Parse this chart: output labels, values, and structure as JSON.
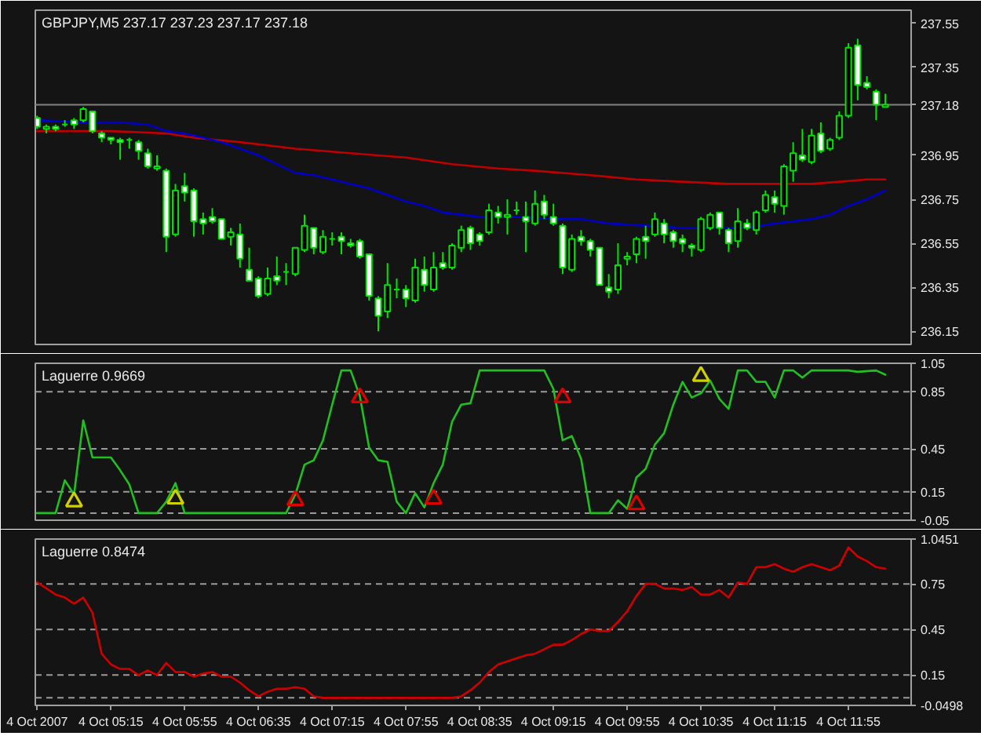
{
  "chart_data": [
    {
      "type": "candlestick",
      "title": "GBPJPY,M5 237.17 237.23 237.17 237.18",
      "x": [
        "2007-10-04T04:35",
        "2007-10-04T04:40",
        "2007-10-04T04:45",
        "2007-10-04T04:50",
        "2007-10-04T04:55",
        "2007-10-04T05:00",
        "2007-10-04T05:05",
        "2007-10-04T05:10",
        "2007-10-04T05:15",
        "2007-10-04T05:20",
        "2007-10-04T05:25",
        "2007-10-04T05:30",
        "2007-10-04T05:35",
        "2007-10-04T05:40",
        "2007-10-04T05:45",
        "2007-10-04T05:50",
        "2007-10-04T05:55",
        "2007-10-04T06:00",
        "2007-10-04T06:05",
        "2007-10-04T06:10",
        "2007-10-04T06:15",
        "2007-10-04T06:20",
        "2007-10-04T06:25",
        "2007-10-04T06:30",
        "2007-10-04T06:35",
        "2007-10-04T06:40",
        "2007-10-04T06:45",
        "2007-10-04T06:50",
        "2007-10-04T06:55",
        "2007-10-04T07:00",
        "2007-10-04T07:05",
        "2007-10-04T07:10",
        "2007-10-04T07:15",
        "2007-10-04T07:20",
        "2007-10-04T07:25",
        "2007-10-04T07:30",
        "2007-10-04T07:35",
        "2007-10-04T07:40",
        "2007-10-04T07:45",
        "2007-10-04T07:50",
        "2007-10-04T07:55",
        "2007-10-04T08:00",
        "2007-10-04T08:05",
        "2007-10-04T08:10",
        "2007-10-04T08:15",
        "2007-10-04T08:20",
        "2007-10-04T08:25",
        "2007-10-04T08:30",
        "2007-10-04T08:35",
        "2007-10-04T08:40",
        "2007-10-04T08:45",
        "2007-10-04T08:50",
        "2007-10-04T08:55",
        "2007-10-04T09:00",
        "2007-10-04T09:05",
        "2007-10-04T09:10",
        "2007-10-04T09:15",
        "2007-10-04T09:20",
        "2007-10-04T09:25",
        "2007-10-04T09:30",
        "2007-10-04T09:35",
        "2007-10-04T09:40",
        "2007-10-04T09:45",
        "2007-10-04T09:50",
        "2007-10-04T09:55",
        "2007-10-04T10:00",
        "2007-10-04T10:05",
        "2007-10-04T10:10",
        "2007-10-04T10:15",
        "2007-10-04T10:20",
        "2007-10-04T10:25",
        "2007-10-04T10:30",
        "2007-10-04T10:35",
        "2007-10-04T10:40",
        "2007-10-04T10:45",
        "2007-10-04T10:50",
        "2007-10-04T10:55",
        "2007-10-04T11:00",
        "2007-10-04T11:05",
        "2007-10-04T11:10",
        "2007-10-04T11:15",
        "2007-10-04T11:20",
        "2007-10-04T11:25",
        "2007-10-04T11:30",
        "2007-10-04T11:35",
        "2007-10-04T11:40",
        "2007-10-04T11:45",
        "2007-10-04T11:50",
        "2007-10-04T11:55",
        "2007-10-04T12:00",
        "2007-10-04T12:05",
        "2007-10-04T12:10",
        "2007-10-04T12:15"
      ],
      "ohlc": [
        [
          237.12,
          237.13,
          237.07,
          237.08
        ],
        [
          237.07,
          237.09,
          237.05,
          237.08
        ],
        [
          237.08,
          237.09,
          237.06,
          237.07
        ],
        [
          237.09,
          237.11,
          237.08,
          237.09
        ],
        [
          237.11,
          237.12,
          237.07,
          237.09
        ],
        [
          237.11,
          237.17,
          237.1,
          237.16
        ],
        [
          237.15,
          237.15,
          237.05,
          237.06
        ],
        [
          237.05,
          237.06,
          237.01,
          237.03
        ],
        [
          237.03,
          237.03,
          237.0,
          237.02
        ],
        [
          237.02,
          237.03,
          236.93,
          237.01
        ],
        [
          237.02,
          237.03,
          236.98,
          237.02
        ],
        [
          237.01,
          237.02,
          236.93,
          236.97
        ],
        [
          236.96,
          236.98,
          236.89,
          236.9
        ],
        [
          236.89,
          236.95,
          236.88,
          236.9
        ],
        [
          236.88,
          236.89,
          236.51,
          236.58
        ],
        [
          236.59,
          236.82,
          236.58,
          236.79
        ],
        [
          236.81,
          236.87,
          236.74,
          236.78
        ],
        [
          236.79,
          236.8,
          236.58,
          236.65
        ],
        [
          236.66,
          236.69,
          236.59,
          236.64
        ],
        [
          236.67,
          236.71,
          236.64,
          236.65
        ],
        [
          236.66,
          236.66,
          236.57,
          236.57
        ],
        [
          236.58,
          236.62,
          236.54,
          236.6
        ],
        [
          236.59,
          236.64,
          236.44,
          236.48
        ],
        [
          236.43,
          236.53,
          236.38,
          236.38
        ],
        [
          236.39,
          236.4,
          236.3,
          236.31
        ],
        [
          236.32,
          236.44,
          236.31,
          236.39
        ],
        [
          236.4,
          236.49,
          236.36,
          236.38
        ],
        [
          236.42,
          236.46,
          236.36,
          236.42
        ],
        [
          236.41,
          236.53,
          236.4,
          236.53
        ],
        [
          236.52,
          236.68,
          236.51,
          236.63
        ],
        [
          236.62,
          236.62,
          236.5,
          236.53
        ],
        [
          236.51,
          236.61,
          236.5,
          236.58
        ],
        [
          236.57,
          236.6,
          236.54,
          236.57
        ],
        [
          236.58,
          236.6,
          236.5,
          236.56
        ],
        [
          236.55,
          236.57,
          236.53,
          236.54
        ],
        [
          236.56,
          236.57,
          236.48,
          236.49
        ],
        [
          236.5,
          236.5,
          236.29,
          236.31
        ],
        [
          236.3,
          236.31,
          236.15,
          236.22
        ],
        [
          236.24,
          236.46,
          236.21,
          236.36
        ],
        [
          236.34,
          236.39,
          236.3,
          236.34
        ],
        [
          236.34,
          236.36,
          236.26,
          236.3
        ],
        [
          236.29,
          236.48,
          236.28,
          236.44
        ],
        [
          236.43,
          236.49,
          236.33,
          236.36
        ],
        [
          236.34,
          236.51,
          236.33,
          236.44
        ],
        [
          236.46,
          236.51,
          236.43,
          236.44
        ],
        [
          236.44,
          236.55,
          236.43,
          236.54
        ],
        [
          236.53,
          236.63,
          236.51,
          236.61
        ],
        [
          236.62,
          236.63,
          236.52,
          236.55
        ],
        [
          236.59,
          236.6,
          236.54,
          236.56
        ],
        [
          236.6,
          236.73,
          236.59,
          236.7
        ],
        [
          236.69,
          236.72,
          236.64,
          236.67
        ],
        [
          236.67,
          236.75,
          236.59,
          236.68
        ],
        [
          236.7,
          236.74,
          236.68,
          236.7
        ],
        [
          236.67,
          236.74,
          236.51,
          236.65
        ],
        [
          236.64,
          236.79,
          236.63,
          236.73
        ],
        [
          236.74,
          236.77,
          236.66,
          236.68
        ],
        [
          236.67,
          236.73,
          236.63,
          236.64
        ],
        [
          236.63,
          236.64,
          236.41,
          236.44
        ],
        [
          236.43,
          236.59,
          236.42,
          236.57
        ],
        [
          236.58,
          236.61,
          236.54,
          236.56
        ],
        [
          236.56,
          236.57,
          236.49,
          236.52
        ],
        [
          236.53,
          236.53,
          236.36,
          236.36
        ],
        [
          236.35,
          236.41,
          236.3,
          236.33
        ],
        [
          236.34,
          236.55,
          236.32,
          236.45
        ],
        [
          236.48,
          236.51,
          236.45,
          236.49
        ],
        [
          236.5,
          236.58,
          236.46,
          236.57
        ],
        [
          236.58,
          236.63,
          236.48,
          236.56
        ],
        [
          236.59,
          236.69,
          236.58,
          236.66
        ],
        [
          236.64,
          236.66,
          236.55,
          236.59
        ],
        [
          236.6,
          236.61,
          236.53,
          236.56
        ],
        [
          236.57,
          236.59,
          236.51,
          236.55
        ],
        [
          236.54,
          236.55,
          236.49,
          236.53
        ],
        [
          236.52,
          236.67,
          236.51,
          236.66
        ],
        [
          236.62,
          236.69,
          236.61,
          236.68
        ],
        [
          236.69,
          236.69,
          236.59,
          236.62
        ],
        [
          236.61,
          236.62,
          236.51,
          236.55
        ],
        [
          236.56,
          236.71,
          236.53,
          236.65
        ],
        [
          236.64,
          236.66,
          236.61,
          236.62
        ],
        [
          236.61,
          236.7,
          236.59,
          236.69
        ],
        [
          236.7,
          236.79,
          236.69,
          236.77
        ],
        [
          236.76,
          236.79,
          236.69,
          236.73
        ],
        [
          236.72,
          236.91,
          236.68,
          236.9
        ],
        [
          236.88,
          237.01,
          236.83,
          236.96
        ],
        [
          236.95,
          237.07,
          236.92,
          236.93
        ],
        [
          236.92,
          237.07,
          236.91,
          237.04
        ],
        [
          237.05,
          237.1,
          236.96,
          236.97
        ],
        [
          236.98,
          237.03,
          236.97,
          237.02
        ],
        [
          237.03,
          237.15,
          237.02,
          237.13
        ],
        [
          237.13,
          237.46,
          237.12,
          237.44
        ],
        [
          237.45,
          237.48,
          237.2,
          237.27
        ],
        [
          237.28,
          237.31,
          237.25,
          237.26
        ],
        [
          237.24,
          237.25,
          237.11,
          237.18
        ],
        [
          237.17,
          237.23,
          237.17,
          237.18
        ]
      ],
      "color": "#00e600",
      "colors": [
        "#ffffff",
        "#000000",
        "#ffffff",
        "#00e600",
        "#ffffff",
        "#000000",
        "#ffffff",
        "#ffffff",
        "#ffffff",
        "#ffffff",
        "#00e600",
        "#ffffff",
        "#ffffff",
        "#000000",
        "#ffffff",
        "#000000",
        "#ffffff",
        "#ffffff",
        "#ffffff",
        "#ffffff",
        "#ffffff",
        "#000000",
        "#ffffff",
        "#ffffff",
        "#ffffff",
        "#000000",
        "#ffffff",
        "#00e600",
        "#000000",
        "#000000",
        "#ffffff",
        "#000000",
        "#00e600",
        "#ffffff",
        "#ffffff",
        "#ffffff",
        "#ffffff",
        "#ffffff",
        "#000000",
        "#00e600",
        "#ffffff",
        "#000000",
        "#ffffff",
        "#000000",
        "#ffffff",
        "#000000",
        "#000000",
        "#ffffff",
        "#ffffff",
        "#000000",
        "#ffffff",
        "#000000",
        "#00e600",
        "#ffffff",
        "#000000",
        "#ffffff",
        "#ffffff",
        "#ffffff",
        "#000000",
        "#ffffff",
        "#ffffff",
        "#ffffff",
        "#ffffff",
        "#000000",
        "#000000",
        "#000000",
        "#ffffff",
        "#000000",
        "#ffffff",
        "#ffffff",
        "#ffffff",
        "#ffffff",
        "#000000",
        "#000000",
        "#ffffff",
        "#ffffff",
        "#000000",
        "#ffffff",
        "#000000",
        "#000000",
        "#ffffff",
        "#000000",
        "#000000",
        "#ffffff",
        "#000000",
        "#ffffff",
        "#000000",
        "#000000",
        "#000000",
        "#ffffff",
        "#ffffff",
        "#ffffff",
        "#000000"
      ],
      "series": [
        {
          "type": "line",
          "color": "#c00000",
          "x": [
            "2007-10-04T04:35",
            "2007-10-04T05:15",
            "2007-10-04T05:45",
            "2007-10-04T06:00",
            "2007-10-04T06:25",
            "2007-10-04T06:55",
            "2007-10-04T07:25",
            "2007-10-04T07:55",
            "2007-10-04T08:20",
            "2007-10-04T08:45",
            "2007-10-04T09:05",
            "2007-10-04T09:35",
            "2007-10-04T10:00",
            "2007-10-04T10:25",
            "2007-10-04T10:50",
            "2007-10-04T11:15",
            "2007-10-04T11:35",
            "2007-10-04T11:50",
            "2007-10-04T12:05",
            "2007-10-04T12:15"
          ],
          "values": [
            237.06,
            237.06,
            237.05,
            237.03,
            237.01,
            236.98,
            236.96,
            236.94,
            236.91,
            236.89,
            236.88,
            236.86,
            236.84,
            236.83,
            236.82,
            236.82,
            236.82,
            236.83,
            236.84,
            236.84
          ]
        },
        {
          "type": "line",
          "color": "#0000c8",
          "x": [
            "2007-10-04T04:35",
            "2007-10-04T05:00",
            "2007-10-04T05:20",
            "2007-10-04T05:35",
            "2007-10-04T05:45",
            "2007-10-04T05:55",
            "2007-10-04T06:05",
            "2007-10-04T06:15",
            "2007-10-04T06:25",
            "2007-10-04T06:35",
            "2007-10-04T06:45",
            "2007-10-04T06:55",
            "2007-10-04T07:05",
            "2007-10-04T07:15",
            "2007-10-04T07:25",
            "2007-10-04T07:35",
            "2007-10-04T07:45",
            "2007-10-04T07:55",
            "2007-10-04T08:05",
            "2007-10-04T08:15",
            "2007-10-04T08:25",
            "2007-10-04T08:35",
            "2007-10-04T08:55",
            "2007-10-04T09:15",
            "2007-10-04T09:30",
            "2007-10-04T09:45",
            "2007-10-04T10:05",
            "2007-10-04T10:25",
            "2007-10-04T10:45",
            "2007-10-04T11:00",
            "2007-10-04T11:15",
            "2007-10-04T11:25",
            "2007-10-04T11:35",
            "2007-10-04T11:45",
            "2007-10-04T11:55",
            "2007-10-04T12:05",
            "2007-10-04T12:15"
          ],
          "values": [
            237.11,
            237.1,
            237.1,
            237.09,
            237.06,
            237.05,
            237.03,
            237.01,
            236.98,
            236.95,
            236.91,
            236.87,
            236.86,
            236.84,
            236.82,
            236.8,
            236.77,
            236.74,
            236.72,
            236.69,
            236.68,
            236.67,
            236.67,
            236.66,
            236.66,
            236.64,
            236.63,
            236.62,
            236.62,
            236.62,
            236.64,
            236.65,
            236.66,
            236.68,
            236.72,
            236.75,
            236.79
          ]
        }
      ],
      "xlim": [
        "2007-10-04T04:34",
        "2007-10-04T12:29"
      ],
      "ylim": [
        236.09,
        237.61
      ],
      "yticks": [
        236.15,
        236.35,
        236.55,
        236.75,
        236.95,
        237.35,
        237.55
      ],
      "ref_lines": [
        {
          "axis": "y",
          "value": 237.18,
          "label": "237.18",
          "color": "#808080"
        }
      ],
      "tick_labels": "y"
    },
    {
      "type": "line",
      "title": "Laguerre 0.9669",
      "series": [
        {
          "color": "#20c020",
          "x": [
            "2007-10-04T04:35",
            "2007-10-04T04:45",
            "2007-10-04T04:50",
            "2007-10-04T04:55",
            "2007-10-04T05:00",
            "2007-10-04T05:05",
            "2007-10-04T05:15",
            "2007-10-04T05:20",
            "2007-10-04T05:25",
            "2007-10-04T05:30",
            "2007-10-04T05:40",
            "2007-10-04T05:45",
            "2007-10-04T05:50",
            "2007-10-04T05:55",
            "2007-10-04T06:50",
            "2007-10-04T06:55",
            "2007-10-04T07:00",
            "2007-10-04T07:05",
            "2007-10-04T07:10",
            "2007-10-04T07:15",
            "2007-10-04T07:20",
            "2007-10-04T07:25",
            "2007-10-04T07:30",
            "2007-10-04T07:35",
            "2007-10-04T07:40",
            "2007-10-04T07:45",
            "2007-10-04T07:50",
            "2007-10-04T07:55",
            "2007-10-04T08:00",
            "2007-10-04T08:05",
            "2007-10-04T08:10",
            "2007-10-04T08:15",
            "2007-10-04T08:20",
            "2007-10-04T08:25",
            "2007-10-04T08:30",
            "2007-10-04T08:35",
            "2007-10-04T09:10",
            "2007-10-04T09:15",
            "2007-10-04T09:20",
            "2007-10-04T09:25",
            "2007-10-04T09:30",
            "2007-10-04T09:35",
            "2007-10-04T09:45",
            "2007-10-04T09:50",
            "2007-10-04T09:55",
            "2007-10-04T10:00",
            "2007-10-04T10:05",
            "2007-10-04T10:10",
            "2007-10-04T10:15",
            "2007-10-04T10:20",
            "2007-10-04T10:25",
            "2007-10-04T10:30",
            "2007-10-04T10:35",
            "2007-10-04T10:40",
            "2007-10-04T10:45",
            "2007-10-04T10:50",
            "2007-10-04T10:55",
            "2007-10-04T11:00",
            "2007-10-04T11:05",
            "2007-10-04T11:10",
            "2007-10-04T11:15",
            "2007-10-04T11:20",
            "2007-10-04T11:25",
            "2007-10-04T11:30",
            "2007-10-04T11:35",
            "2007-10-04T11:55",
            "2007-10-04T12:00",
            "2007-10-04T12:10",
            "2007-10-04T12:15"
          ],
          "values": [
            0,
            0,
            0.23,
            0.13,
            0.65,
            0.39,
            0.39,
            0.3,
            0.2,
            0,
            0,
            0.08,
            0.21,
            0,
            0,
            0.13,
            0.34,
            0.37,
            0.51,
            0.76,
            1,
            1,
            0.82,
            0.46,
            0.37,
            0.36,
            0.08,
            0,
            0.14,
            0.04,
            0.21,
            0.34,
            0.64,
            0.76,
            0.77,
            1,
            1,
            0.87,
            0.51,
            0.54,
            0.38,
            0,
            0,
            0.09,
            0.03,
            0.25,
            0.31,
            0.48,
            0.56,
            0.76,
            0.92,
            0.81,
            0.84,
            0.93,
            0.8,
            0.73,
            1,
            1,
            0.92,
            0.92,
            0.81,
            1,
            1,
            0.95,
            1,
            1,
            0.99,
            1,
            0.97
          ]
        },
        {
          "type": "scatter",
          "marker": "triangle",
          "color": "#d0d000",
          "x": [
            "2007-10-04T04:55",
            "2007-10-04T05:50",
            "2007-10-04T10:35"
          ],
          "values": [
            0.08,
            0.1,
            0.96
          ]
        },
        {
          "type": "scatter",
          "marker": "triangle",
          "color": "#e00000",
          "x": [
            "2007-10-04T06:55",
            "2007-10-04T07:30",
            "2007-10-04T08:10",
            "2007-10-04T09:20",
            "2007-10-04T10:00"
          ],
          "values": [
            0.09,
            0.81,
            0.1,
            0.81,
            0.06
          ]
        }
      ],
      "xlim": [
        "2007-10-04T04:34",
        "2007-10-04T12:29"
      ],
      "ylim": [
        -0.05,
        1.05
      ],
      "yticks": [
        -0.05,
        0.15,
        0.45,
        0.85,
        1.05
      ],
      "ref_lines": [
        {
          "axis": "y",
          "value": 0,
          "color": "#9a9a9a",
          "line_style": "dashed"
        },
        {
          "axis": "y",
          "value": 0.15,
          "color": "#9a9a9a",
          "line_style": "dashed"
        },
        {
          "axis": "y",
          "value": 0.45,
          "color": "#9a9a9a",
          "line_style": "dashed"
        },
        {
          "axis": "y",
          "value": 0.85,
          "color": "#9a9a9a",
          "line_style": "dashed"
        }
      ],
      "tick_labels": "y"
    },
    {
      "type": "line",
      "title": "Laguerre 0.8474",
      "series": [
        {
          "color": "#d00000",
          "x": [
            "2007-10-04T04:35",
            "2007-10-04T04:45",
            "2007-10-04T04:50",
            "2007-10-04T04:55",
            "2007-10-04T05:00",
            "2007-10-04T05:05",
            "2007-10-04T05:10",
            "2007-10-04T05:15",
            "2007-10-04T05:20",
            "2007-10-04T05:25",
            "2007-10-04T05:30",
            "2007-10-04T05:35",
            "2007-10-04T05:40",
            "2007-10-04T05:45",
            "2007-10-04T05:50",
            "2007-10-04T05:55",
            "2007-10-04T06:00",
            "2007-10-04T06:05",
            "2007-10-04T06:10",
            "2007-10-04T06:15",
            "2007-10-04T06:20",
            "2007-10-04T06:25",
            "2007-10-04T06:30",
            "2007-10-04T06:35",
            "2007-10-04T06:40",
            "2007-10-04T06:45",
            "2007-10-04T06:50",
            "2007-10-04T06:55",
            "2007-10-04T07:00",
            "2007-10-04T07:05",
            "2007-10-04T07:10",
            "2007-10-04T08:20",
            "2007-10-04T08:25",
            "2007-10-04T08:30",
            "2007-10-04T08:35",
            "2007-10-04T08:40",
            "2007-10-04T08:45",
            "2007-10-04T08:55",
            "2007-10-04T09:00",
            "2007-10-04T09:05",
            "2007-10-04T09:10",
            "2007-10-04T09:15",
            "2007-10-04T09:20",
            "2007-10-04T09:25",
            "2007-10-04T09:30",
            "2007-10-04T09:35",
            "2007-10-04T09:40",
            "2007-10-04T09:45",
            "2007-10-04T09:50",
            "2007-10-04T09:55",
            "2007-10-04T10:00",
            "2007-10-04T10:05",
            "2007-10-04T10:10",
            "2007-10-04T10:15",
            "2007-10-04T10:20",
            "2007-10-04T10:25",
            "2007-10-04T10:30",
            "2007-10-04T10:35",
            "2007-10-04T10:40",
            "2007-10-04T10:45",
            "2007-10-04T10:50",
            "2007-10-04T10:55",
            "2007-10-04T11:00",
            "2007-10-04T11:05",
            "2007-10-04T11:10",
            "2007-10-04T11:15",
            "2007-10-04T11:20",
            "2007-10-04T11:25",
            "2007-10-04T11:30",
            "2007-10-04T11:35",
            "2007-10-04T11:40",
            "2007-10-04T11:45",
            "2007-10-04T11:50",
            "2007-10-04T11:55",
            "2007-10-04T12:00",
            "2007-10-04T12:05",
            "2007-10-04T12:10",
            "2007-10-04T12:15"
          ],
          "values": [
            0.76,
            0.68,
            0.66,
            0.62,
            0.66,
            0.56,
            0.29,
            0.22,
            0.19,
            0.19,
            0.15,
            0.18,
            0.15,
            0.23,
            0.17,
            0.17,
            0.14,
            0.16,
            0.17,
            0.14,
            0.14,
            0.1,
            0.05,
            0.01,
            0.04,
            0.06,
            0.06,
            0.07,
            0.06,
            0.01,
            0,
            0,
            0.01,
            0.05,
            0.1,
            0.17,
            0.22,
            0.26,
            0.28,
            0.29,
            0.32,
            0.35,
            0.35,
            0.38,
            0.42,
            0.45,
            0.44,
            0.44,
            0.5,
            0.57,
            0.67,
            0.75,
            0.75,
            0.72,
            0.72,
            0.71,
            0.73,
            0.68,
            0.68,
            0.71,
            0.66,
            0.76,
            0.75,
            0.86,
            0.86,
            0.88,
            0.85,
            0.83,
            0.86,
            0.88,
            0.86,
            0.84,
            0.87,
            0.99,
            0.93,
            0.9,
            0.86,
            0.85
          ]
        }
      ],
      "xlim": [
        "2007-10-04T04:34",
        "2007-10-04T12:29"
      ],
      "ylim": [
        -0.0498,
        1.0451
      ],
      "yticks": [
        -0.0498,
        0.15,
        0.45,
        0.75,
        1.0451
      ],
      "xticks": [
        {
          "value": "2007-10-04T04:35",
          "label": "4 Oct 2007"
        },
        {
          "value": "2007-10-04T05:15",
          "label": "4 Oct 05:15"
        },
        {
          "value": "2007-10-04T05:55",
          "label": "4 Oct 05:55"
        },
        {
          "value": "2007-10-04T06:35",
          "label": "4 Oct 06:35"
        },
        {
          "value": "2007-10-04T07:15",
          "label": "4 Oct 07:15"
        },
        {
          "value": "2007-10-04T07:55",
          "label": "4 Oct 07:55"
        },
        {
          "value": "2007-10-04T08:35",
          "label": "4 Oct 08:35"
        },
        {
          "value": "2007-10-04T09:15",
          "label": "4 Oct 09:15"
        },
        {
          "value": "2007-10-04T09:55",
          "label": "4 Oct 09:55"
        },
        {
          "value": "2007-10-04T10:35",
          "label": "4 Oct 10:35"
        },
        {
          "value": "2007-10-04T11:15",
          "label": "4 Oct 11:15"
        },
        {
          "value": "2007-10-04T11:55",
          "label": "4 Oct 11:55"
        }
      ],
      "ref_lines": [
        {
          "axis": "y",
          "value": 0,
          "color": "#9a9a9a",
          "line_style": "dashed"
        },
        {
          "axis": "y",
          "value": 0.15,
          "color": "#9a9a9a",
          "line_style": "dashed"
        },
        {
          "axis": "y",
          "value": 0.45,
          "color": "#9a9a9a",
          "line_style": "dashed"
        },
        {
          "axis": "y",
          "value": 0.75,
          "color": "#9a9a9a",
          "line_style": "dashed"
        }
      ]
    }
  ]
}
